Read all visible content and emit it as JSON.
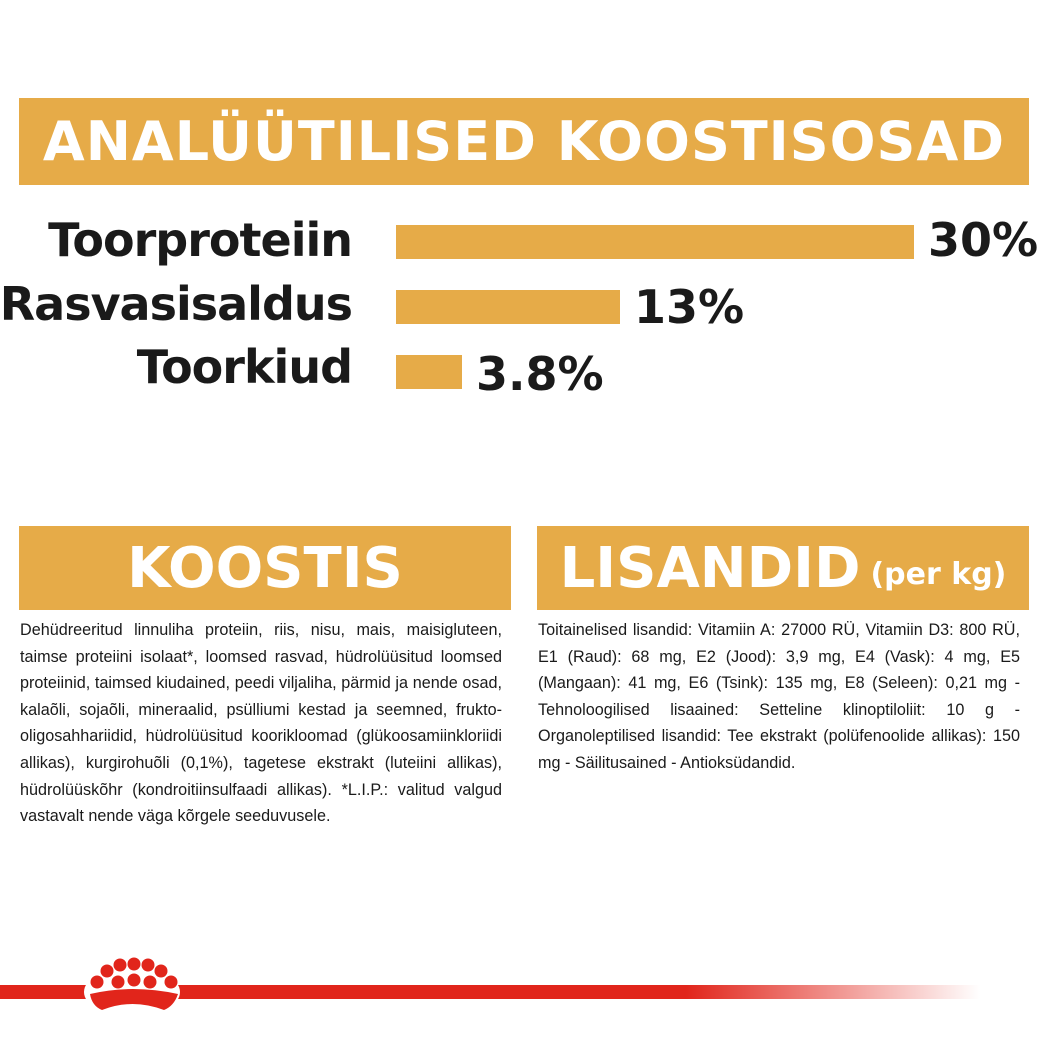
{
  "header": {
    "title": "ANALÜÜTILISED KOOSTISOSAD"
  },
  "nutrients": [
    {
      "label": "Toorproteiin",
      "value_text": "30%",
      "value": 30
    },
    {
      "label": "Rasvasisaldus",
      "value_text": "13%",
      "value": 13
    },
    {
      "label": "Toorkiud",
      "value_text": "3.8%",
      "value": 3.8
    }
  ],
  "koostis": {
    "title": "KOOSTIS",
    "text": "Dehüdreeritud linnuliha proteiin, riis, nisu, mais, maisigluteen, taimse proteiini isolaat*, loomsed rasvad, hüdrolüüsitud loomsed proteiinid, taimsed kiudained, peedi viljaliha, pärmid ja nende osad, kalaõli, sojaõli, mineraalid, psülliumi kestad ja seemned, frukto-oligosahhariidid, hüdrolüüsitud koorikloomad (glükoosamiinkloriidi allikas), kurgirohuõli (0,1%), tagetese ekstrakt (luteiini allikas), hüdrolüüskõhr (kondroitiinsulfaadi allikas). *L.I.P.: valitud valgud vastavalt nende väga kõrgele seeduvusele."
  },
  "lisandid": {
    "title": "LISANDID",
    "subtitle": "(per kg)",
    "text": "Toitainelised lisandid: Vitamiin A: 27000 RÜ, Vitamiin D3: 800 RÜ, E1 (Raud): 68 mg, E2 (Jood): 3,9 mg, E4 (Vask): 4 mg, E5 (Mangaan): 41 mg, E6 (Tsink): 135 mg, E8 (Seleen): 0,21 mg - Tehnoloogilised lisaained: Setteline klinoptiloliit: 10 g - Organoleptilised lisandid: Tee ekstrakt (polüfenoolide allikas): 150 mg - Säilitusained - Antioksüdandid."
  },
  "colors": {
    "accent": "#e6ab48",
    "brand_red": "#e1251b",
    "text": "#1a1a1a"
  },
  "footer": {
    "logo_icon": "royal-canin-crown-icon"
  }
}
